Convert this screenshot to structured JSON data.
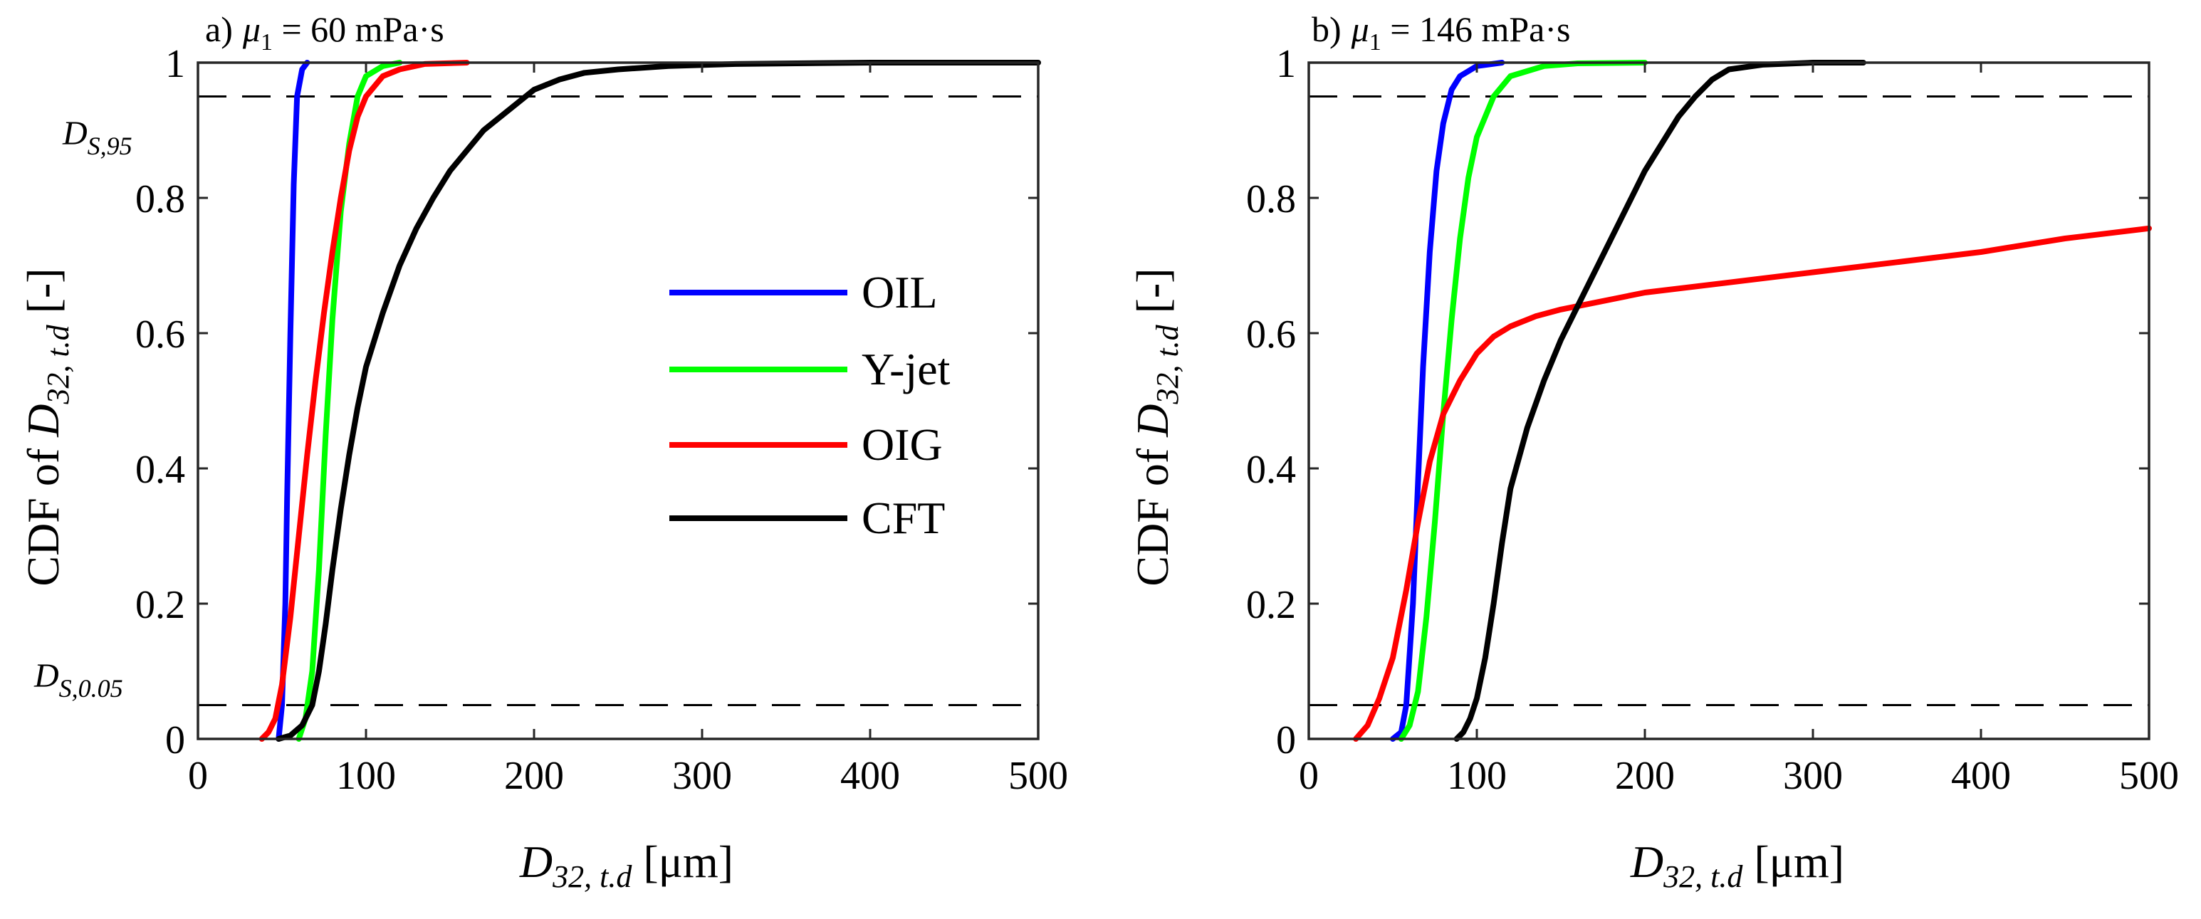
{
  "chart_data": [
    {
      "type": "line",
      "panel": "a",
      "title_prefix": "a)",
      "title_symbol": "μ",
      "title_subscript": "1",
      "title_suffix": " = 60 mPa·s",
      "xlabel_var": "D",
      "xlabel_sub": "32, t.d",
      "xlabel_unit": " [μm]",
      "ylabel_prefix": "CDF of ",
      "ylabel_var": "D",
      "ylabel_sub": "32, t.d",
      "ylabel_unit": " [-]",
      "xlim": [
        0,
        500
      ],
      "ylim": [
        0,
        1
      ],
      "xticks": [
        "0",
        "100",
        "200",
        "300",
        "400",
        "500"
      ],
      "yticks": [
        "0",
        "0.2",
        "0.4",
        "0.6",
        "0.8",
        "1"
      ],
      "hlines": [
        0.95,
        0.05
      ],
      "annotations": [
        {
          "var": "D",
          "sub": "S,95",
          "y": 0.95
        },
        {
          "var": "D",
          "sub": "S,0.05",
          "y": 0.05
        }
      ],
      "legend": [
        "OIL",
        "Y-jet",
        "OIG",
        "CFT"
      ],
      "series": [
        {
          "name": "OIL",
          "color": "#0000ff",
          "x": [
            48,
            50,
            52,
            53,
            55,
            57,
            59,
            62,
            65
          ],
          "y": [
            0,
            0.05,
            0.2,
            0.35,
            0.6,
            0.82,
            0.95,
            0.99,
            1.0
          ]
        },
        {
          "name": "Y-jet",
          "color": "#00ff00",
          "x": [
            60,
            64,
            68,
            72,
            76,
            80,
            85,
            90,
            95,
            100,
            110,
            120
          ],
          "y": [
            0,
            0.03,
            0.1,
            0.25,
            0.45,
            0.62,
            0.78,
            0.88,
            0.95,
            0.98,
            0.995,
            1.0
          ]
        },
        {
          "name": "OIG",
          "color": "#ff0000",
          "x": [
            38,
            42,
            46,
            50,
            55,
            60,
            65,
            70,
            75,
            80,
            85,
            90,
            95,
            100,
            110,
            120,
            135,
            160
          ],
          "y": [
            0,
            0.01,
            0.03,
            0.08,
            0.18,
            0.3,
            0.42,
            0.53,
            0.63,
            0.72,
            0.8,
            0.87,
            0.92,
            0.95,
            0.98,
            0.99,
            0.998,
            1.0
          ]
        },
        {
          "name": "CFT",
          "color": "#000000",
          "x": [
            48,
            55,
            62,
            68,
            72,
            76,
            80,
            85,
            90,
            95,
            100,
            110,
            120,
            130,
            140,
            150,
            160,
            170,
            180,
            190,
            200,
            215,
            230,
            250,
            280,
            320,
            400,
            500
          ],
          "y": [
            0,
            0.005,
            0.02,
            0.05,
            0.1,
            0.17,
            0.25,
            0.34,
            0.42,
            0.49,
            0.55,
            0.63,
            0.7,
            0.755,
            0.8,
            0.84,
            0.87,
            0.9,
            0.92,
            0.94,
            0.96,
            0.975,
            0.985,
            0.99,
            0.995,
            0.998,
            1.0,
            1.0
          ]
        }
      ]
    },
    {
      "type": "line",
      "panel": "b",
      "title_prefix": "b)",
      "title_symbol": "μ",
      "title_subscript": "1",
      "title_suffix": " = 146 mPa·s",
      "xlabel_var": "D",
      "xlabel_sub": "32, t.d",
      "xlabel_unit": " [μm]",
      "ylabel_prefix": "CDF of ",
      "ylabel_var": "D",
      "ylabel_sub": "32, t.d",
      "ylabel_unit": " [-]",
      "xlim": [
        0,
        500
      ],
      "ylim": [
        0,
        1
      ],
      "xticks": [
        "0",
        "100",
        "200",
        "300",
        "400",
        "500"
      ],
      "yticks": [
        "0",
        "0.2",
        "0.4",
        "0.6",
        "0.8",
        "1"
      ],
      "hlines": [
        0.95,
        0.05
      ],
      "series": [
        {
          "name": "OIL",
          "color": "#0000ff",
          "x": [
            50,
            55,
            58,
            62,
            65,
            68,
            72,
            76,
            80,
            85,
            90,
            100,
            115
          ],
          "y": [
            0,
            0.01,
            0.05,
            0.2,
            0.38,
            0.55,
            0.72,
            0.84,
            0.91,
            0.96,
            0.98,
            0.995,
            1.0
          ]
        },
        {
          "name": "Y-jet",
          "color": "#00ff00",
          "x": [
            55,
            60,
            65,
            70,
            75,
            80,
            85,
            90,
            95,
            100,
            110,
            120,
            140,
            160,
            200
          ],
          "y": [
            0,
            0.02,
            0.07,
            0.18,
            0.32,
            0.48,
            0.62,
            0.74,
            0.83,
            0.89,
            0.95,
            0.98,
            0.995,
            0.999,
            1.0
          ]
        },
        {
          "name": "OIG",
          "color": "#ff0000",
          "x": [
            28,
            35,
            42,
            50,
            58,
            65,
            72,
            80,
            90,
            100,
            110,
            120,
            135,
            150,
            170,
            200,
            250,
            300,
            350,
            400,
            450,
            500
          ],
          "y": [
            0,
            0.02,
            0.06,
            0.12,
            0.22,
            0.32,
            0.41,
            0.48,
            0.53,
            0.57,
            0.595,
            0.61,
            0.625,
            0.635,
            0.645,
            0.66,
            0.675,
            0.69,
            0.705,
            0.72,
            0.74,
            0.755
          ]
        },
        {
          "name": "CFT",
          "color": "#000000",
          "x": [
            88,
            92,
            96,
            100,
            105,
            110,
            115,
            120,
            130,
            140,
            150,
            160,
            170,
            180,
            190,
            200,
            210,
            220,
            230,
            240,
            250,
            270,
            300,
            330
          ],
          "y": [
            0,
            0.01,
            0.03,
            0.06,
            0.12,
            0.2,
            0.29,
            0.37,
            0.46,
            0.53,
            0.59,
            0.64,
            0.69,
            0.74,
            0.79,
            0.84,
            0.88,
            0.92,
            0.95,
            0.975,
            0.99,
            0.997,
            1.0,
            1.0
          ]
        }
      ]
    }
  ]
}
